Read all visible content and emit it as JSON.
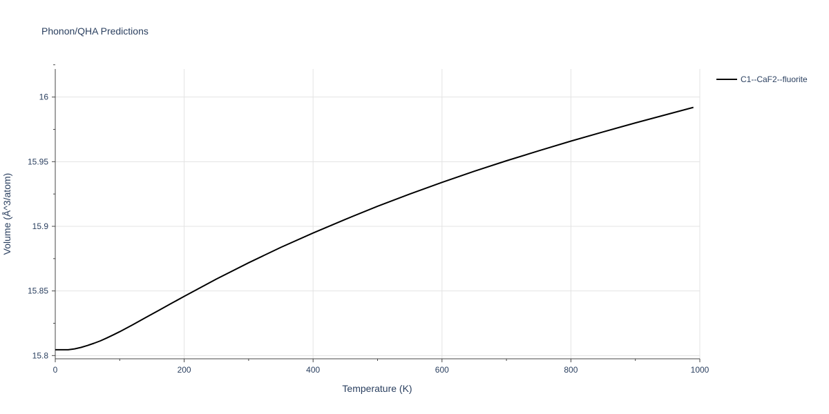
{
  "chart_data": {
    "type": "line",
    "title": "Phonon/QHA Predictions",
    "xlabel": "Temperature (K)",
    "ylabel": "Volume (Å^3/atom)",
    "xlim": [
      0,
      1000
    ],
    "ylim": [
      15.7975,
      16.0217
    ],
    "x_ticks": [
      0,
      200,
      400,
      600,
      800,
      1000
    ],
    "y_ticks": [
      15.8,
      15.85,
      15.9,
      15.95,
      16
    ],
    "x_tick_labels": [
      "0",
      "200",
      "400",
      "600",
      "800",
      "1000"
    ],
    "y_tick_labels": [
      "15.8",
      "15.85",
      "15.9",
      "15.95",
      "16"
    ],
    "grid": true,
    "legend_position": "top-right",
    "series": [
      {
        "name": "C1--CaF2--fluorite",
        "color": "#000000",
        "x": [
          0,
          10,
          20,
          30,
          40,
          50,
          60,
          70,
          80,
          90,
          100,
          120,
          140,
          160,
          180,
          200,
          250,
          300,
          350,
          400,
          450,
          500,
          550,
          600,
          650,
          700,
          750,
          800,
          850,
          900,
          950,
          990
        ],
        "y": [
          15.8045,
          15.8045,
          15.8045,
          15.8052,
          15.8063,
          15.8078,
          15.8095,
          15.8114,
          15.8136,
          15.816,
          15.8185,
          15.8238,
          15.8293,
          15.8348,
          15.8403,
          15.8458,
          15.8592,
          15.8718,
          15.8837,
          15.8948,
          15.9054,
          15.9155,
          15.925,
          15.934,
          15.9426,
          15.9507,
          15.9584,
          15.9659,
          15.973,
          15.98,
          15.9867,
          15.992
        ]
      }
    ]
  }
}
